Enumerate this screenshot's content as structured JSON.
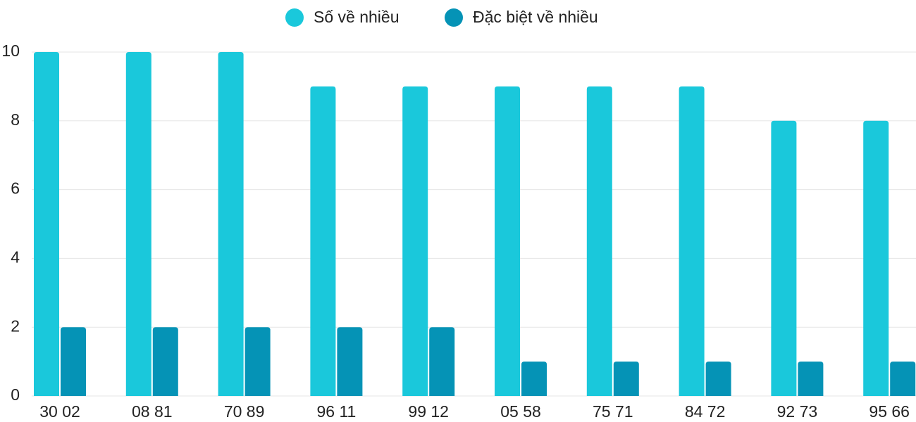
{
  "chart_data": {
    "type": "bar",
    "categories": [
      "30 02",
      "08 81",
      "70 89",
      "96 11",
      "99 12",
      "05 58",
      "75 71",
      "84 72",
      "92 73",
      "95 66"
    ],
    "series": [
      {
        "name": "Số về nhiều",
        "color": "#1ac8db",
        "values": [
          10,
          10,
          10,
          9,
          9,
          9,
          9,
          9,
          8,
          8
        ]
      },
      {
        "name": "Đặc biệt về nhiều",
        "color": "#0593b6",
        "values": [
          2,
          2,
          2,
          2,
          2,
          1,
          1,
          1,
          1,
          1
        ]
      }
    ],
    "ylim": [
      0,
      10
    ],
    "yticks": [
      0,
      2,
      4,
      6,
      8,
      10
    ],
    "grid": true,
    "legend": "top"
  }
}
